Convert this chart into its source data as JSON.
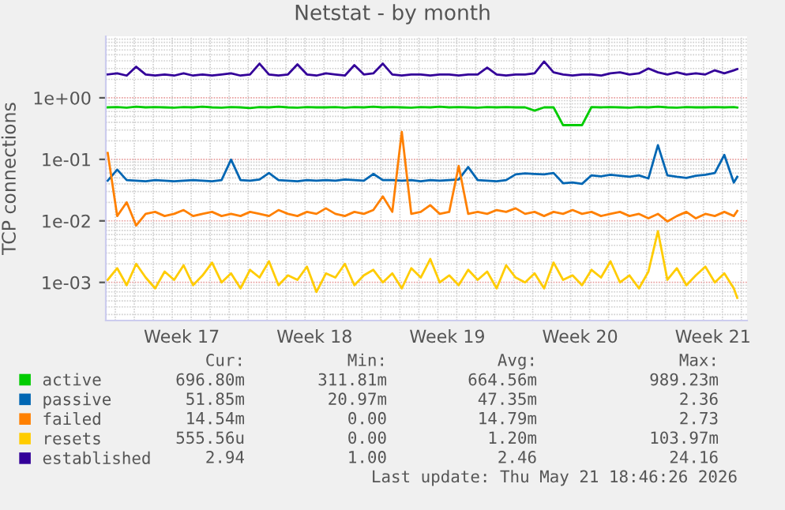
{
  "chart_data": {
    "type": "line",
    "title": "Netstat - by month",
    "ylabel": "TCP connections",
    "log": "y",
    "grid": true,
    "legend": "bottom left",
    "marker": "none",
    "line_style": "solid",
    "x": [
      "2026-04-18T14:24",
      "2026-04-19T02:24",
      "2026-04-19T14:24",
      "2026-04-20T02:24",
      "2026-04-20T14:24",
      "2026-04-21T02:24",
      "2026-04-21T14:24",
      "2026-04-22T02:24",
      "2026-04-22T14:24",
      "2026-04-23T02:24",
      "2026-04-23T14:24",
      "2026-04-24T02:24",
      "2026-04-24T14:24",
      "2026-04-25T02:24",
      "2026-04-25T14:24",
      "2026-04-26T02:24",
      "2026-04-26T14:24",
      "2026-04-27T02:24",
      "2026-04-27T14:24",
      "2026-04-28T02:24",
      "2026-04-28T14:24",
      "2026-04-29T02:24",
      "2026-04-29T14:24",
      "2026-04-30T02:24",
      "2026-04-30T14:24",
      "2026-05-01T02:24",
      "2026-05-01T14:24",
      "2026-05-02T02:24",
      "2026-05-02T14:24",
      "2026-05-03T02:24",
      "2026-05-03T14:24",
      "2026-05-04T02:24",
      "2026-05-04T14:24",
      "2026-05-05T02:24",
      "2026-05-05T14:24",
      "2026-05-06T02:24",
      "2026-05-06T14:24",
      "2026-05-07T02:24",
      "2026-05-07T14:24",
      "2026-05-08T02:24",
      "2026-05-08T14:24",
      "2026-05-09T02:24",
      "2026-05-09T14:24",
      "2026-05-10T02:24",
      "2026-05-10T14:24",
      "2026-05-11T02:24",
      "2026-05-11T14:24",
      "2026-05-12T02:24",
      "2026-05-12T14:24",
      "2026-05-13T02:24",
      "2026-05-13T14:24",
      "2026-05-14T02:24",
      "2026-05-14T14:24",
      "2026-05-15T02:24",
      "2026-05-15T14:24",
      "2026-05-16T02:24",
      "2026-05-16T14:24",
      "2026-05-17T02:24",
      "2026-05-17T14:24",
      "2026-05-18T02:24",
      "2026-05-18T14:24",
      "2026-05-19T02:24",
      "2026-05-19T14:24",
      "2026-05-20T02:24",
      "2026-05-20T14:24",
      "2026-05-21T02:24",
      "2026-05-21T14:24",
      "2026-05-21T18:45"
    ],
    "xlim": [
      "2026-04-18T12:00",
      "2026-05-22T07:12"
    ],
    "xticks": [
      {
        "value": "2026-04-19",
        "label": null
      },
      {
        "value": "2026-04-20",
        "label": null
      },
      {
        "value": "2026-04-21",
        "label": null
      },
      {
        "value": "2026-04-22",
        "label": null
      },
      {
        "value": "2026-04-23",
        "label": null
      },
      {
        "value": "2026-04-24",
        "label": null
      },
      {
        "value": "2026-04-25",
        "label": null
      },
      {
        "value": "2026-04-26",
        "label": null
      },
      {
        "value": "2026-04-27",
        "label": null
      },
      {
        "value": "2026-04-28",
        "label": null
      },
      {
        "value": "2026-04-29",
        "label": null
      },
      {
        "value": "2026-04-30",
        "label": null
      },
      {
        "value": "2026-05-01",
        "label": null
      },
      {
        "value": "2026-05-02",
        "label": null
      },
      {
        "value": "2026-05-03",
        "label": null
      },
      {
        "value": "2026-05-04",
        "label": null
      },
      {
        "value": "2026-05-05",
        "label": null
      },
      {
        "value": "2026-05-06",
        "label": null
      },
      {
        "value": "2026-05-07",
        "label": null
      },
      {
        "value": "2026-05-08",
        "label": null
      },
      {
        "value": "2026-05-09",
        "label": null
      },
      {
        "value": "2026-05-10",
        "label": null
      },
      {
        "value": "2026-05-11",
        "label": null
      },
      {
        "value": "2026-05-12",
        "label": null
      },
      {
        "value": "2026-05-13",
        "label": null
      },
      {
        "value": "2026-05-14",
        "label": null
      },
      {
        "value": "2026-05-15",
        "label": null
      },
      {
        "value": "2026-05-16",
        "label": null
      },
      {
        "value": "2026-05-17",
        "label": null
      },
      {
        "value": "2026-05-18",
        "label": null
      },
      {
        "value": "2026-05-19",
        "label": null
      },
      {
        "value": "2026-05-20",
        "label": null
      },
      {
        "value": "2026-05-21",
        "label": null
      },
      {
        "value": "2026-05-22",
        "label": null
      },
      {
        "value": "2026-04-22T12:00",
        "label": "Week 17"
      },
      {
        "value": "2026-04-29T12:00",
        "label": "Week 18"
      },
      {
        "value": "2026-05-06T12:00",
        "label": "Week 19"
      },
      {
        "value": "2026-05-13T12:00",
        "label": "Week 20"
      },
      {
        "value": "2026-05-20T12:00",
        "label": "Week 21"
      }
    ],
    "ylim": [
      0.00024,
      10
    ],
    "yticks": [
      {
        "value": 0.001,
        "label": "1e-03"
      },
      {
        "value": 0.01,
        "label": "1e-02"
      },
      {
        "value": 0.1,
        "label": "1e-01"
      },
      {
        "value": 1,
        "label": "1e+00"
      }
    ],
    "series": [
      {
        "name": "active",
        "color": "#00cc00",
        "values": [
          0.7,
          0.71,
          0.69,
          0.72,
          0.7,
          0.71,
          0.7,
          0.69,
          0.71,
          0.7,
          0.72,
          0.7,
          0.69,
          0.71,
          0.7,
          0.68,
          0.71,
          0.7,
          0.72,
          0.7,
          0.69,
          0.71,
          0.7,
          0.7,
          0.71,
          0.69,
          0.71,
          0.7,
          0.72,
          0.7,
          0.71,
          0.7,
          0.69,
          0.71,
          0.7,
          0.72,
          0.7,
          0.71,
          0.7,
          0.69,
          0.71,
          0.7,
          0.71,
          0.7,
          0.7,
          0.62,
          0.7,
          0.7,
          0.36,
          0.36,
          0.36,
          0.71,
          0.7,
          0.71,
          0.7,
          0.69,
          0.71,
          0.7,
          0.72,
          0.7,
          0.69,
          0.71,
          0.7,
          0.7,
          0.71,
          0.7,
          0.71,
          0.697
        ]
      },
      {
        "name": "passive",
        "color": "#0066b3",
        "values": [
          0.045,
          0.068,
          0.046,
          0.045,
          0.044,
          0.046,
          0.045,
          0.044,
          0.045,
          0.046,
          0.045,
          0.044,
          0.046,
          0.099,
          0.046,
          0.045,
          0.047,
          0.06,
          0.046,
          0.045,
          0.044,
          0.046,
          0.045,
          0.046,
          0.045,
          0.047,
          0.046,
          0.045,
          0.058,
          0.046,
          0.046,
          0.045,
          0.046,
          0.044,
          0.046,
          0.045,
          0.046,
          0.047,
          0.075,
          0.046,
          0.045,
          0.044,
          0.046,
          0.057,
          0.059,
          0.058,
          0.057,
          0.06,
          0.041,
          0.042,
          0.04,
          0.055,
          0.053,
          0.056,
          0.054,
          0.052,
          0.055,
          0.049,
          0.17,
          0.055,
          0.052,
          0.05,
          0.054,
          0.056,
          0.06,
          0.118,
          0.042,
          0.052
        ]
      },
      {
        "name": "failed",
        "color": "#ff8000",
        "values": [
          0.127,
          0.012,
          0.02,
          0.0084,
          0.013,
          0.014,
          0.012,
          0.013,
          0.015,
          0.012,
          0.013,
          0.014,
          0.012,
          0.013,
          0.012,
          0.014,
          0.013,
          0.012,
          0.015,
          0.013,
          0.012,
          0.014,
          0.013,
          0.016,
          0.013,
          0.012,
          0.014,
          0.013,
          0.015,
          0.025,
          0.014,
          0.28,
          0.013,
          0.014,
          0.018,
          0.013,
          0.014,
          0.078,
          0.013,
          0.014,
          0.013,
          0.015,
          0.014,
          0.016,
          0.013,
          0.014,
          0.012,
          0.014,
          0.013,
          0.015,
          0.013,
          0.014,
          0.012,
          0.013,
          0.014,
          0.012,
          0.013,
          0.011,
          0.013,
          0.0098,
          0.012,
          0.014,
          0.011,
          0.013,
          0.012,
          0.014,
          0.012,
          0.0145
        ]
      },
      {
        "name": "resets",
        "color": "#ffcc00",
        "values": [
          0.0011,
          0.0017,
          0.0009,
          0.002,
          0.0012,
          0.0008,
          0.0015,
          0.0011,
          0.0019,
          0.0009,
          0.0013,
          0.0021,
          0.001,
          0.0014,
          0.0008,
          0.0016,
          0.0012,
          0.0022,
          0.0009,
          0.0013,
          0.0011,
          0.0018,
          0.0007,
          0.0014,
          0.0012,
          0.002,
          0.0009,
          0.0013,
          0.0016,
          0.001,
          0.0014,
          0.0008,
          0.0017,
          0.0012,
          0.0024,
          0.001,
          0.0013,
          0.0009,
          0.0016,
          0.0011,
          0.0015,
          0.0008,
          0.0019,
          0.0012,
          0.001,
          0.0014,
          0.0008,
          0.0021,
          0.0011,
          0.0013,
          0.0009,
          0.0016,
          0.0012,
          0.0022,
          0.001,
          0.0013,
          0.0008,
          0.0015,
          0.0068,
          0.0011,
          0.0017,
          0.0009,
          0.0013,
          0.0018,
          0.001,
          0.0014,
          0.0008,
          0.00056
        ]
      },
      {
        "name": "established",
        "color": "#330099",
        "values": [
          2.4,
          2.5,
          2.3,
          3.2,
          2.4,
          2.3,
          2.4,
          2.3,
          2.5,
          2.3,
          2.4,
          2.3,
          2.4,
          2.5,
          2.3,
          2.4,
          3.6,
          2.4,
          2.3,
          2.4,
          3.5,
          2.4,
          2.3,
          2.5,
          2.4,
          2.3,
          3.4,
          2.4,
          2.5,
          3.6,
          2.4,
          2.3,
          2.4,
          2.4,
          2.3,
          2.4,
          2.4,
          2.3,
          2.4,
          2.4,
          3.1,
          2.4,
          2.3,
          2.4,
          2.4,
          2.5,
          3.9,
          2.6,
          2.4,
          2.3,
          2.4,
          2.4,
          2.3,
          2.5,
          2.6,
          2.4,
          2.5,
          3.0,
          2.6,
          2.4,
          2.6,
          2.4,
          2.5,
          2.4,
          2.8,
          2.5,
          2.8,
          2.94
        ]
      }
    ],
    "annotations": [
      "Cur:",
      "Min:",
      "Avg:",
      "Max:",
      "696.80m",
      "311.81m",
      "664.56m",
      "989.23m",
      "51.85m",
      "20.97m",
      "47.35m",
      "2.36",
      "14.54m",
      "0.00",
      "14.79m",
      "2.73",
      "555.56u",
      "0.00",
      "1.20m",
      "103.97m",
      "2.94",
      "1.00",
      "2.46",
      "24.16",
      "Last update: Thu May 21 18:46:26 2026"
    ]
  }
}
